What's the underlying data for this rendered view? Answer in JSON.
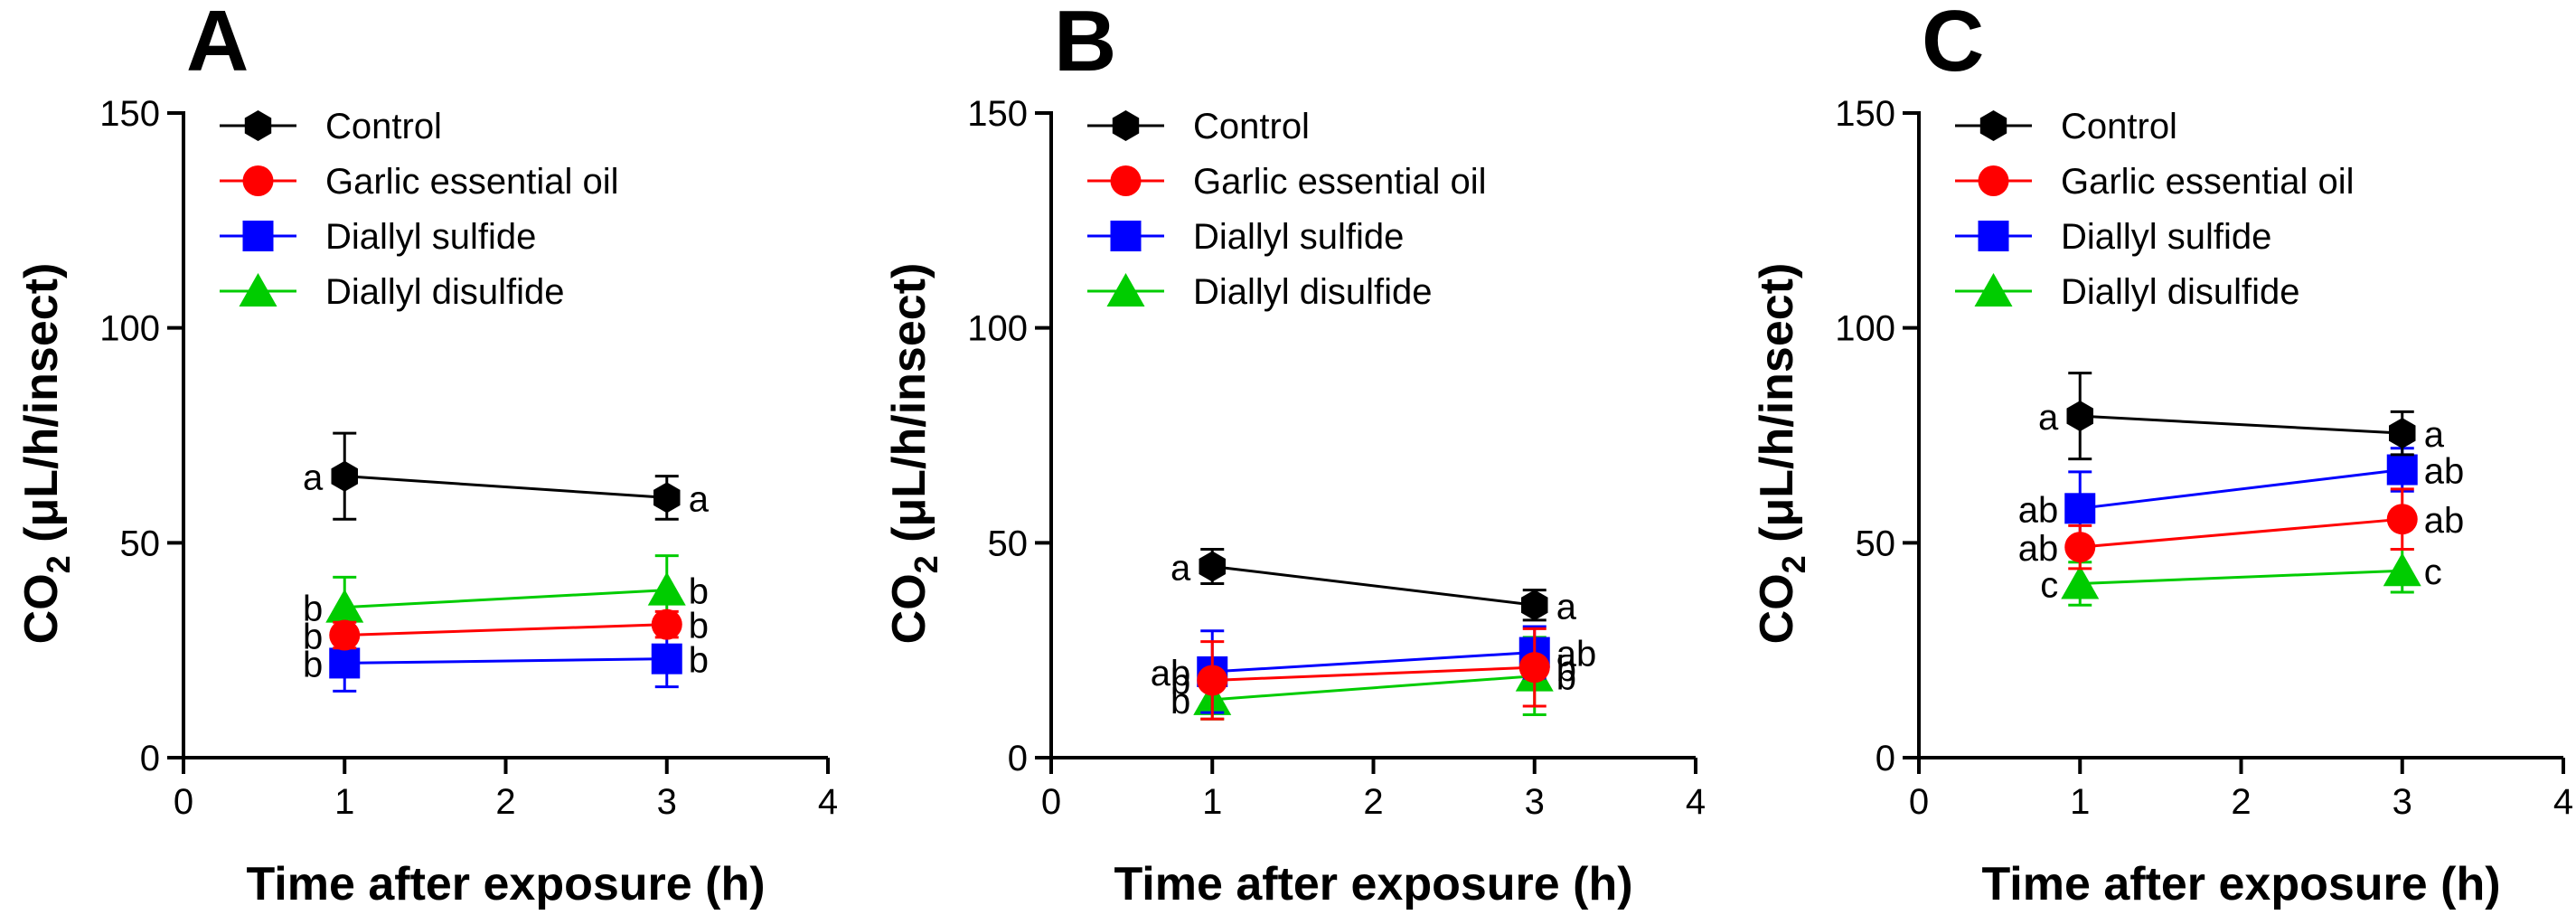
{
  "colors": {
    "control": "#000000",
    "garlic_essential_oil": "#ff0000",
    "diallyl_sulfide": "#0000ff",
    "diallyl_disulfide": "#00cc00"
  },
  "chart_data": [
    {
      "type": "line",
      "panel": "A",
      "xlabel": "Time after exposure (h)",
      "ylabel": "CO2 (μL/h/insect)",
      "xlim": [
        0,
        4
      ],
      "ylim": [
        0,
        150
      ],
      "xticks": [
        0,
        1,
        2,
        3,
        4
      ],
      "yticks": [
        0,
        50,
        100,
        150
      ],
      "legend": "top-left",
      "grid": false,
      "x": [
        1,
        3
      ],
      "series": [
        {
          "name": "Control",
          "key": "control",
          "marker": "hexagon",
          "values": [
            65.5,
            60.5
          ],
          "errors": [
            10,
            5
          ],
          "labels": [
            "a",
            "a"
          ]
        },
        {
          "name": "Garlic essential oil",
          "key": "garlic_essential_oil",
          "marker": "circle",
          "values": [
            28.5,
            31
          ],
          "errors": [
            3,
            3
          ],
          "labels": [
            "b",
            "b"
          ]
        },
        {
          "name": "Diallyl sulfide",
          "key": "diallyl_sulfide",
          "marker": "square",
          "values": [
            22,
            23
          ],
          "errors": [
            6.5,
            6.5
          ],
          "labels": [
            "b",
            "b"
          ]
        },
        {
          "name": "Diallyl disulfide",
          "key": "diallyl_disulfide",
          "marker": "triangle",
          "values": [
            35,
            39
          ],
          "errors": [
            7,
            8
          ],
          "labels": [
            "b",
            "b"
          ]
        }
      ]
    },
    {
      "type": "line",
      "panel": "B",
      "xlabel": "Time after exposure (h)",
      "ylabel": "CO2 (μL/h/insect)",
      "xlim": [
        0,
        4
      ],
      "ylim": [
        0,
        150
      ],
      "xticks": [
        0,
        1,
        2,
        3,
        4
      ],
      "yticks": [
        0,
        50,
        100,
        150
      ],
      "legend": "top-left",
      "grid": false,
      "x": [
        1,
        3
      ],
      "series": [
        {
          "name": "Control",
          "key": "control",
          "marker": "hexagon",
          "values": [
            44.5,
            35.5
          ],
          "errors": [
            4,
            3.5
          ],
          "labels": [
            "a",
            "a"
          ]
        },
        {
          "name": "Garlic essential oil",
          "key": "garlic_essential_oil",
          "marker": "circle",
          "values": [
            18,
            21
          ],
          "errors": [
            9,
            9
          ],
          "labels": [
            "b",
            "b"
          ]
        },
        {
          "name": "Diallyl sulfide",
          "key": "diallyl_sulfide",
          "marker": "square",
          "values": [
            20,
            24.5
          ],
          "errors": [
            9.5,
            6
          ],
          "labels": [
            "ab",
            "ab"
          ]
        },
        {
          "name": "Diallyl disulfide",
          "key": "diallyl_disulfide",
          "marker": "triangle",
          "values": [
            13.5,
            19
          ],
          "errors": [
            4.5,
            9
          ],
          "labels": [
            "b",
            "b"
          ]
        }
      ]
    },
    {
      "type": "line",
      "panel": "C",
      "xlabel": "Time after exposure (h)",
      "ylabel": "CO2 (μL/h/insect)",
      "xlim": [
        0,
        4
      ],
      "ylim": [
        0,
        150
      ],
      "xticks": [
        0,
        1,
        2,
        3,
        4
      ],
      "yticks": [
        0,
        50,
        100,
        150
      ],
      "legend": "top-left",
      "grid": false,
      "x": [
        1,
        3
      ],
      "series": [
        {
          "name": "Control",
          "key": "control",
          "marker": "hexagon",
          "values": [
            79.5,
            75.5
          ],
          "errors": [
            10,
            5
          ],
          "labels": [
            "a",
            "a"
          ]
        },
        {
          "name": "Garlic essential oil",
          "key": "garlic_essential_oil",
          "marker": "circle",
          "values": [
            49,
            55.5
          ],
          "errors": [
            5,
            7
          ],
          "labels": [
            "ab",
            "ab"
          ]
        },
        {
          "name": "Diallyl sulfide",
          "key": "diallyl_sulfide",
          "marker": "square",
          "values": [
            58,
            67
          ],
          "errors": [
            8.5,
            5
          ],
          "labels": [
            "ab",
            "ab"
          ]
        },
        {
          "name": "Diallyl disulfide",
          "key": "diallyl_disulfide",
          "marker": "triangle",
          "values": [
            40.5,
            43.5
          ],
          "errors": [
            5,
            5
          ],
          "labels": [
            "c",
            "c"
          ]
        }
      ]
    }
  ]
}
